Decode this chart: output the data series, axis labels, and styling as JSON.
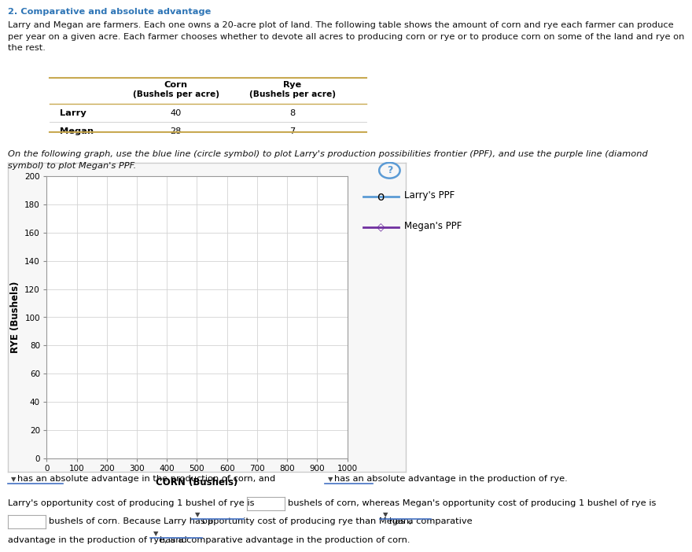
{
  "xlim": [
    0,
    1000
  ],
  "ylim": [
    0,
    200
  ],
  "xticks": [
    0,
    100,
    200,
    300,
    400,
    500,
    600,
    700,
    800,
    900,
    1000
  ],
  "yticks": [
    0,
    20,
    40,
    60,
    80,
    100,
    120,
    140,
    160,
    180,
    200
  ],
  "xlabel": "CORN (Bushels)",
  "ylabel": "RYE (Bushels)",
  "larry_color": "#5b9bd5",
  "megan_color": "#7030a0",
  "larry_label": "Larry's PPF",
  "megan_label": "Megan's PPF",
  "background_color": "#ffffff",
  "grid_color": "#d3d3d3",
  "title": "2. Comparative and absolute advantage",
  "title_color": "#2e75b6",
  "para1": "Larry and Megan are farmers. Each one owns a 20-acre plot of land. The following table shows the amount of corn and rye each farmer can produce\nper year on a given acre. Each farmer chooses whether to devote all acres to producing corn or rye or to produce corn on some of the land and rye on\nthe rest.",
  "inst_text": "On the following graph, use the blue line (circle symbol) to plot Larry's production possibilities frontier (PPF), and use the purple line (diamond\nsymbol) to plot Megan's PPF.",
  "table_border_color": "#c8a951",
  "fig_bg": "#ffffff",
  "panel_bg": "#f7f7f7",
  "panel_border": "#cccccc",
  "question_color": "#5b9bd5"
}
